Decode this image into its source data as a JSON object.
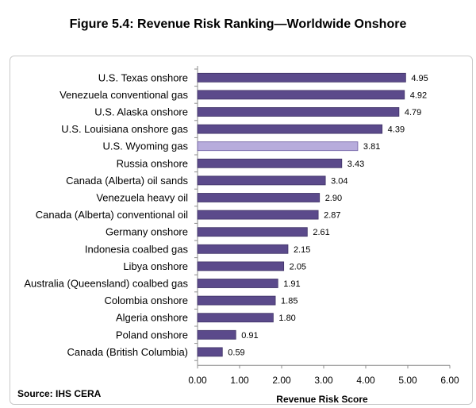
{
  "chart_data": {
    "type": "bar",
    "orientation": "horizontal",
    "title": "Figure 5.4: Revenue Risk Ranking—Worldwide Onshore",
    "xlabel": "Revenue Risk Score",
    "source": "Source: IHS CERA",
    "xlim": [
      0,
      6
    ],
    "xticks": [
      "0.00",
      "1.00",
      "2.00",
      "3.00",
      "4.00",
      "5.00",
      "6.00"
    ],
    "grid": false,
    "categories": [
      "U.S. Texas onshore",
      "Venezuela conventional gas",
      "U.S. Alaska onshore",
      "U.S. Louisiana onshore gas",
      "U.S. Wyoming gas",
      "Russia onshore",
      "Canada (Alberta) oil sands",
      "Venezuela heavy oil",
      "Canada (Alberta)  conventional oil",
      "Germany onshore",
      "Indonesia coalbed gas",
      "Libya onshore",
      "Australia (Queensland) coalbed gas",
      "Colombia onshore",
      "Algeria onshore",
      "Poland onshore",
      "Canada (British Columbia)"
    ],
    "values": [
      4.95,
      4.92,
      4.79,
      4.39,
      3.81,
      3.43,
      3.04,
      2.9,
      2.87,
      2.61,
      2.15,
      2.05,
      1.91,
      1.85,
      1.8,
      0.91,
      0.59
    ],
    "value_labels": [
      "4.95",
      "4.92",
      "4.79",
      "4.39",
      "3.81",
      "3.43",
      "3.04",
      "2.90",
      "2.87",
      "2.61",
      "2.15",
      "2.05",
      "1.91",
      "1.85",
      "1.80",
      "0.91",
      "0.59"
    ],
    "highlight_index": 4,
    "colors": {
      "bar": "#5b4a8b",
      "bar_border": "#3f3266",
      "highlight": "#b7acdc",
      "highlight_border": "#6b5ca0",
      "axis": "#8c8c8c"
    }
  }
}
